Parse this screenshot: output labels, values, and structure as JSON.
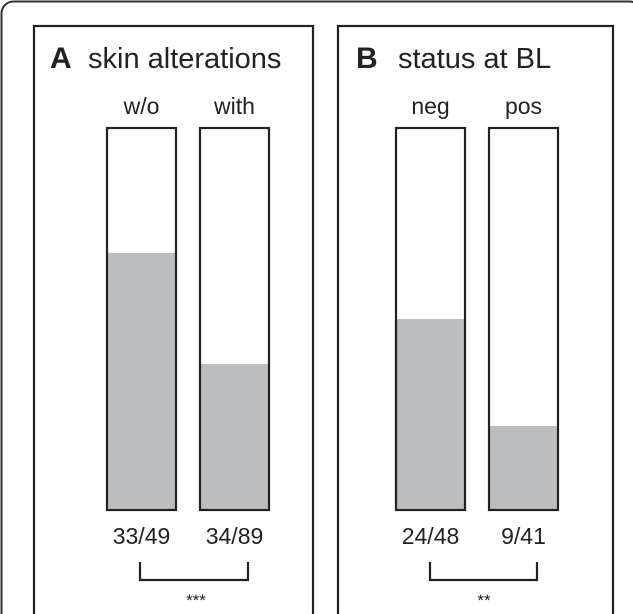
{
  "chart_data": [
    {
      "type": "bar",
      "panel_letter": "A",
      "title": "skin alterations",
      "categories": [
        "w/o",
        "with"
      ],
      "values": [
        67.3,
        38.2
      ],
      "data_labels": [
        "33/49",
        "34/89"
      ],
      "ylim": [
        0,
        100
      ],
      "significance": "***",
      "fill_color": "#bcbdbf"
    },
    {
      "type": "bar",
      "panel_letter": "B",
      "title": "status at BL",
      "categories": [
        "neg",
        "pos"
      ],
      "values": [
        50.0,
        22.0
      ],
      "data_labels": [
        "24/48",
        "9/41"
      ],
      "ylim": [
        0,
        100
      ],
      "significance": "**",
      "fill_color": "#bcbdbf"
    }
  ]
}
